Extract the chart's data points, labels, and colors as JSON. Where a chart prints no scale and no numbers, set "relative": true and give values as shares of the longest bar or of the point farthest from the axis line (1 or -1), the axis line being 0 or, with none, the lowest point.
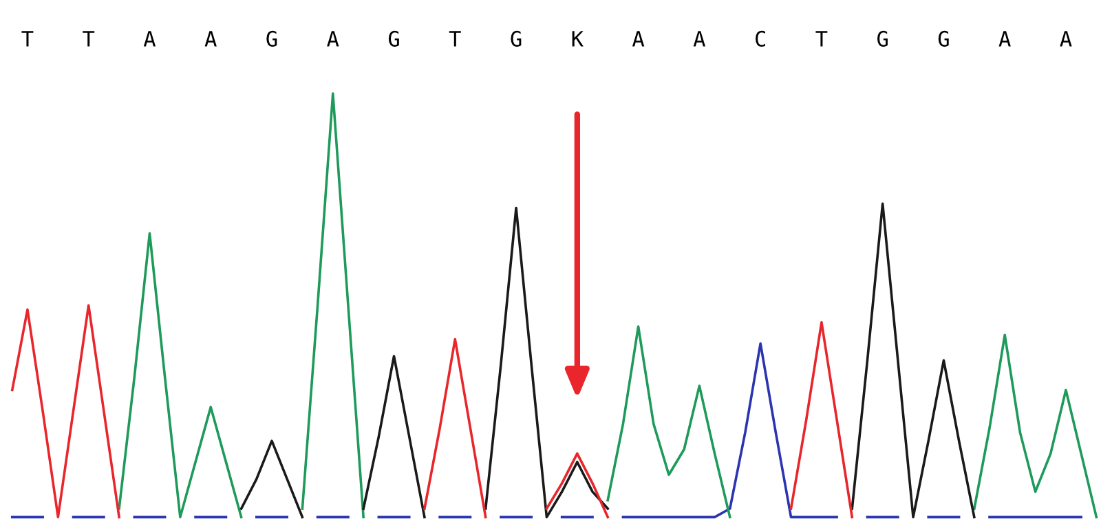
{
  "chart_data": {
    "type": "line",
    "relative": true,
    "grid": false,
    "legend": false,
    "marker": "none",
    "line_style": "solid",
    "categories": [
      null,
      "T",
      null,
      null,
      null,
      "T",
      null,
      null,
      null,
      "A",
      null,
      null,
      null,
      "A",
      null,
      null,
      null,
      "G",
      null,
      null,
      null,
      "A",
      null,
      null,
      null,
      "G",
      null,
      null,
      null,
      "T",
      null,
      null,
      null,
      "G",
      null,
      null,
      null,
      "K",
      null,
      null,
      null,
      "A",
      null,
      null,
      null,
      "A",
      null,
      null,
      null,
      "C",
      null,
      null,
      null,
      "T",
      null,
      null,
      null,
      "G",
      null,
      null,
      null,
      "G",
      null,
      null,
      null,
      "A",
      null,
      null,
      null,
      "A",
      null,
      null
    ],
    "series": [
      {
        "color": "#2b35b0",
        "values": [
          0,
          0,
          0,
          null,
          0,
          0,
          0,
          null,
          0,
          0,
          0,
          null,
          0,
          0,
          0,
          null,
          0,
          0,
          0,
          null,
          0,
          0,
          0,
          null,
          0,
          0,
          0,
          null,
          0,
          0,
          0,
          null,
          0,
          0,
          0,
          null,
          0,
          0,
          0,
          null,
          0,
          0,
          0,
          0,
          0,
          0,
          0,
          0.02,
          0.2,
          0.41,
          0.2,
          0,
          0,
          0,
          0,
          null,
          0,
          0,
          0,
          null,
          0,
          0,
          0,
          null,
          0,
          0,
          0,
          0,
          0,
          0,
          0,
          null
        ]
      },
      {
        "color": "#1e9a5a",
        "values": [
          null,
          null,
          null,
          null,
          null,
          null,
          null,
          0.02,
          0.33,
          0.67,
          0.33,
          0,
          0.13,
          0.26,
          0.13,
          0,
          null,
          null,
          null,
          0.02,
          0.5,
          1.0,
          0.5,
          0,
          null,
          null,
          null,
          null,
          null,
          null,
          null,
          null,
          null,
          null,
          null,
          null,
          null,
          null,
          null,
          0.04,
          0.22,
          0.45,
          0.22,
          0.1,
          0.16,
          0.31,
          0.15,
          0,
          null,
          null,
          null,
          null,
          null,
          null,
          null,
          null,
          null,
          null,
          null,
          null,
          null,
          null,
          null,
          0.02,
          0.21,
          0.43,
          0.2,
          0.06,
          0.15,
          0.3,
          0.15,
          0
        ]
      },
      {
        "color": "#1a1a1a",
        "values": [
          null,
          null,
          null,
          null,
          null,
          null,
          null,
          null,
          null,
          null,
          null,
          null,
          null,
          null,
          null,
          0.02,
          0.09,
          0.18,
          0.09,
          0,
          null,
          null,
          null,
          0.02,
          0.19,
          0.38,
          0.19,
          0,
          null,
          null,
          null,
          0.02,
          0.36,
          0.73,
          0.36,
          0,
          0.06,
          0.13,
          0.06,
          0.02,
          null,
          null,
          null,
          null,
          null,
          null,
          null,
          null,
          null,
          null,
          null,
          null,
          null,
          null,
          null,
          0.02,
          0.37,
          0.74,
          0.37,
          0,
          0.18,
          0.37,
          0.18,
          0,
          null,
          null,
          null,
          null,
          null,
          null,
          null,
          null
        ]
      },
      {
        "color": "#e8262b",
        "values": [
          0.3,
          0.49,
          0.25,
          0,
          0.25,
          0.5,
          0.25,
          0,
          null,
          null,
          null,
          null,
          null,
          null,
          null,
          null,
          null,
          null,
          null,
          null,
          null,
          null,
          null,
          null,
          null,
          null,
          null,
          0.02,
          0.21,
          0.42,
          0.21,
          0,
          null,
          null,
          null,
          0.02,
          0.08,
          0.15,
          0.08,
          0,
          null,
          null,
          null,
          null,
          null,
          null,
          null,
          null,
          null,
          null,
          null,
          0.02,
          0.23,
          0.46,
          0.23,
          0,
          null,
          null,
          null,
          null,
          null,
          null,
          null,
          null,
          null,
          null,
          null,
          null,
          null,
          null,
          null,
          null
        ]
      }
    ]
  }
}
